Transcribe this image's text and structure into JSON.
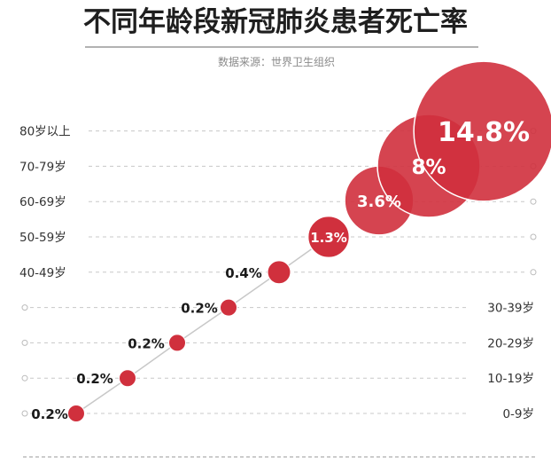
{
  "title": "不同年龄段新冠肺炎患者死亡率",
  "source": "数据来源：世界卫生组织",
  "colors": {
    "bubble": "#d0303d",
    "bubble_stroke": "#ffffff",
    "grid": "#c8c8c8",
    "trend_line": "#c8c8c8",
    "label_dark": "#1a1a1a",
    "label_light": "#ffffff"
  },
  "chart_data": {
    "type": "scatter",
    "title": "不同年龄段新冠肺炎患者死亡率",
    "subtitle": "数据来源：世界卫生组织",
    "categories": [
      "0-9岁",
      "10-19岁",
      "20-29岁",
      "30-39岁",
      "40-49岁",
      "50-59岁",
      "60-69岁",
      "70-79岁",
      "80岁以上"
    ],
    "values": [
      0.2,
      0.2,
      0.2,
      0.2,
      0.4,
      1.3,
      3.6,
      8,
      14.8
    ],
    "value_labels": [
      "0.2%",
      "0.2%",
      "0.2%",
      "0.2%",
      "0.4%",
      "1.3%",
      "3.6%",
      "8%",
      "14.8%"
    ],
    "unit": "%",
    "grid": true,
    "bubble_size_encodes_value": true
  }
}
